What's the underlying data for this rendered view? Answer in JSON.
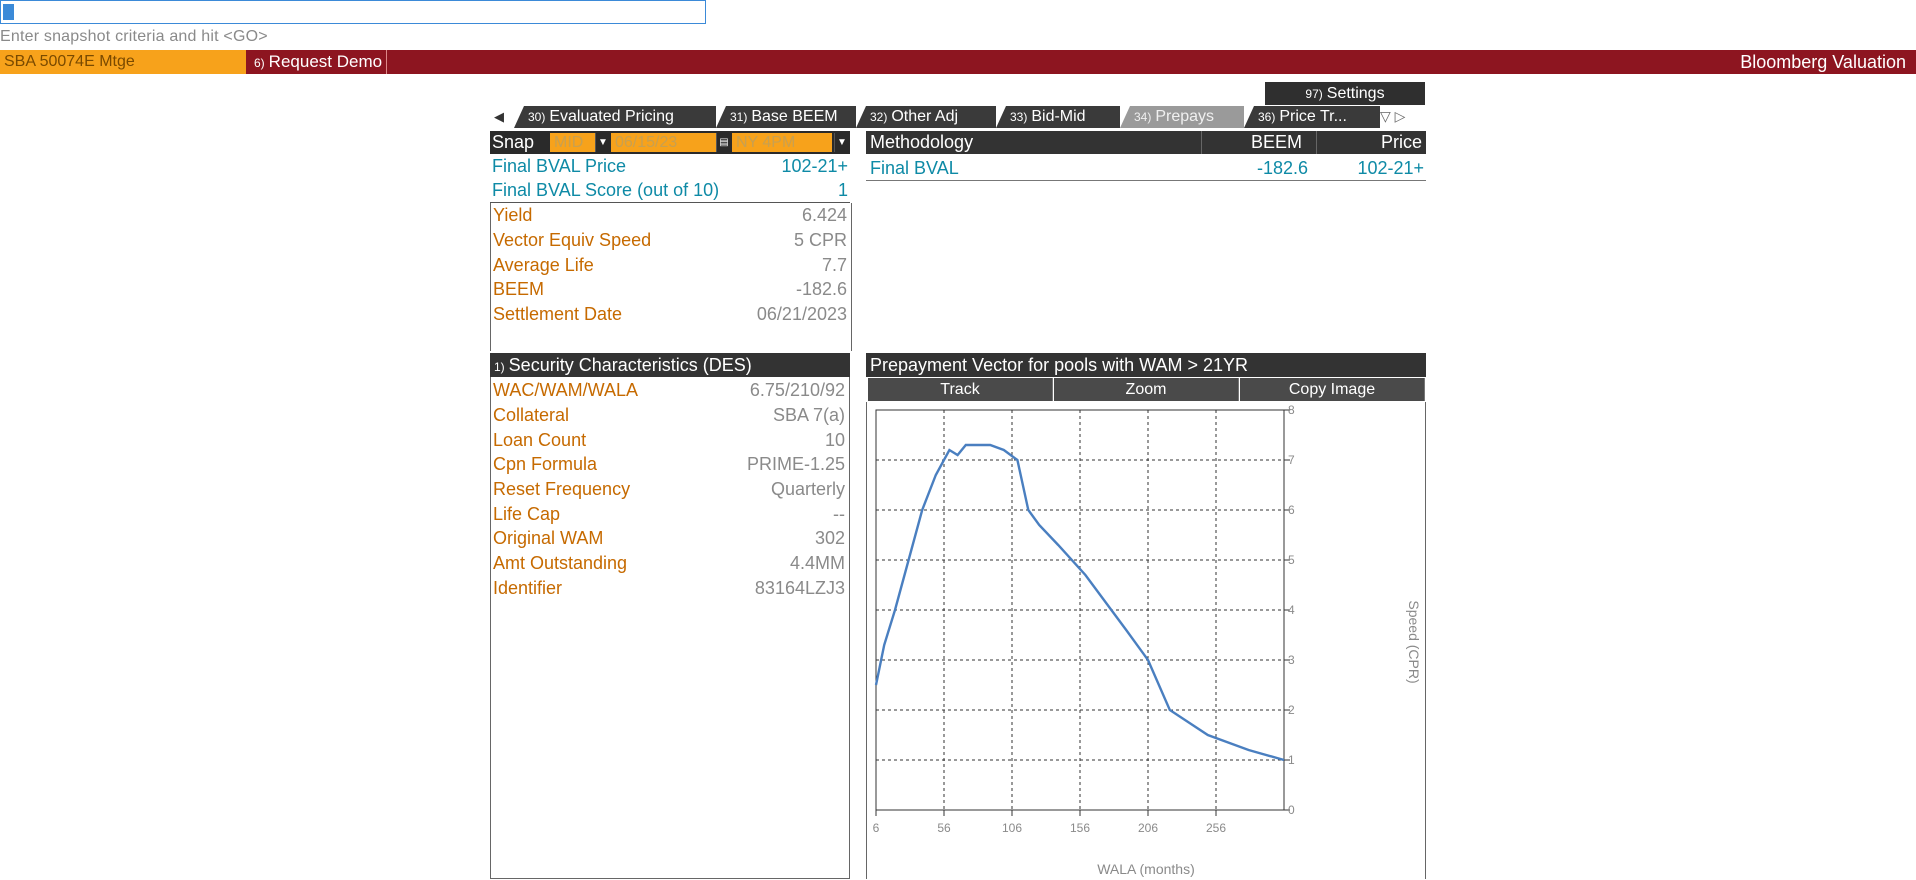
{
  "command_line": {
    "hint": "Enter snapshot criteria and hit <GO>"
  },
  "header": {
    "security": "SBA 50074E Mtge",
    "request_demo_num": "6)",
    "request_demo": "Request Demo",
    "app_title": "Bloomberg Valuation"
  },
  "settings": {
    "num": "97)",
    "label": "Settings"
  },
  "tabs": [
    {
      "num": "30)",
      "label": "Evaluated Pricing"
    },
    {
      "num": "31)",
      "label": "Base BEEM"
    },
    {
      "num": "32)",
      "label": "Other Adj"
    },
    {
      "num": "33)",
      "label": "Bid-Mid"
    },
    {
      "num": "34)",
      "label": "Prepays"
    },
    {
      "num": "36)",
      "label": "Price Tr..."
    }
  ],
  "snap": {
    "label": "Snap",
    "source": "MID",
    "date": "06/15/23",
    "time": "NY 4PM"
  },
  "summary": [
    {
      "label": "Final BVAL Price",
      "value": "102-21+"
    },
    {
      "label": "Final BVAL Score (out of 10)",
      "value": "1"
    }
  ],
  "metrics": [
    {
      "label": "Yield",
      "value": "6.424"
    },
    {
      "label": "Vector Equiv Speed",
      "value": "5 CPR"
    },
    {
      "label": "Average Life",
      "value": "7.7"
    },
    {
      "label": "BEEM",
      "value": "-182.6"
    },
    {
      "label": "Settlement Date",
      "value": "06/21/2023"
    }
  ],
  "des": {
    "num": "1)",
    "title": "Security Characteristics (DES)",
    "rows": [
      {
        "label": "WAC/WAM/WALA",
        "value": "6.75/210/92"
      },
      {
        "label": "Collateral",
        "value": "SBA 7(a)"
      },
      {
        "label": "Loan Count",
        "value": "10"
      },
      {
        "label": "Cpn Formula",
        "value": "PRIME-1.25"
      },
      {
        "label": "Reset Frequency",
        "value": "Quarterly"
      },
      {
        "label": "Life Cap",
        "value": "--"
      },
      {
        "label": "Original WAM",
        "value": "302"
      },
      {
        "label": "Amt Outstanding",
        "value": "4.4MM"
      },
      {
        "label": "Identifier",
        "value": "83164LZJ3"
      }
    ]
  },
  "methodology": {
    "headers": [
      "Methodology",
      "BEEM",
      "Price"
    ],
    "row": {
      "name": "Final BVAL",
      "beem": "-182.6",
      "price": "102-21+"
    }
  },
  "chart_buttons": [
    "Track",
    "Zoom",
    "Copy Image"
  ],
  "chart_data": {
    "type": "line",
    "title": "Prepayment Vector for pools with WAM > 21YR",
    "xlabel": "WALA (months)",
    "ylabel": "Speed (CPR)",
    "xlim": [
      6,
      306
    ],
    "ylim": [
      0,
      8
    ],
    "x_ticks": [
      6,
      56,
      106,
      156,
      206,
      256
    ],
    "y_ticks": [
      0,
      1,
      2,
      3,
      4,
      5,
      6,
      7,
      8
    ],
    "grid": true,
    "series": [
      {
        "color": "#4a7fc0",
        "x": [
          6,
          12,
          20,
          30,
          40,
          50,
          60,
          66,
          72,
          82,
          90,
          100,
          110,
          118,
          126,
          140,
          160,
          190,
          206,
          222,
          250,
          280,
          306
        ],
        "y": [
          2.5,
          3.3,
          4.0,
          5.0,
          6.0,
          6.7,
          7.2,
          7.1,
          7.3,
          7.3,
          7.3,
          7.2,
          7.0,
          6.0,
          5.7,
          5.3,
          4.7,
          3.6,
          3.0,
          2.0,
          1.5,
          1.2,
          1.0
        ]
      }
    ],
    "color": "#4a7fc0"
  }
}
